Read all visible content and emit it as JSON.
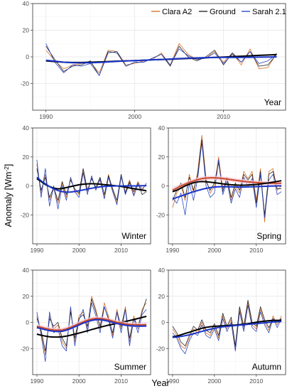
{
  "ylabel_main": "Anomaly [Wm",
  "ylabel_sup": "-2",
  "ylabel_close": "]",
  "xlabel": "Year",
  "legend": [
    {
      "label": "Clara A2",
      "color": "#d2691e"
    },
    {
      "label": "Ground",
      "color": "#1a1a1a"
    },
    {
      "label": "Sarah 2.1",
      "color": "#1f3fbf"
    }
  ],
  "chart_data": [
    {
      "type": "line",
      "panel": "Year",
      "x": [
        1990,
        1991,
        1992,
        1993,
        1994,
        1995,
        1996,
        1997,
        1998,
        1999,
        2000,
        2001,
        2002,
        2003,
        2004,
        2005,
        2006,
        2007,
        2008,
        2009,
        2010,
        2011,
        2012,
        2013,
        2014,
        2015,
        2016
      ],
      "xlim": [
        1988.5,
        2017
      ],
      "ylim": [
        -40,
        40
      ],
      "xticks": [
        1990,
        2000,
        2010
      ],
      "yticks": [
        -20,
        0,
        20,
        40
      ],
      "series": [
        {
          "name": "Clara A2",
          "values": [
            5,
            -3,
            -9,
            -6,
            -5,
            -4,
            -12,
            5,
            4,
            -6,
            -5,
            -3,
            -2,
            3,
            -6,
            10,
            2,
            -2,
            -1,
            4,
            -4,
            3,
            -6,
            6,
            -9,
            -8,
            3
          ]
        },
        {
          "name": "Ground",
          "values": [
            8,
            -2,
            -11,
            -7,
            -6,
            -3,
            -14,
            4,
            3,
            -7,
            -4,
            -4,
            -1,
            2,
            -7,
            8,
            0,
            -3,
            0,
            5,
            -6,
            3,
            -4,
            4,
            -7,
            -6,
            2
          ]
        },
        {
          "name": "Sarah 2.1",
          "values": [
            10,
            -4,
            -12,
            -6,
            -7,
            -5,
            -14,
            3,
            4,
            -7,
            -4,
            -4,
            -1,
            2,
            -6,
            6,
            1,
            -2,
            -1,
            3,
            -5,
            2,
            -4,
            4,
            -5,
            -3,
            2
          ]
        },
        {
          "name": "Ground trend",
          "values": [
            -3,
            -3.5,
            -4,
            -4.2,
            -4.2,
            -4,
            -3.8,
            -3.5,
            -3.2,
            -3,
            -2.8,
            -2.5,
            -2.2,
            -2,
            -1.8,
            -1.5,
            -1.2,
            -1,
            -0.7,
            -0.4,
            -0.1,
            0.2,
            0.5,
            0.8,
            1.1,
            1.4,
            1.7
          ]
        },
        {
          "name": "Sarah 2.1 trend",
          "values": [
            -2.5,
            -3.2,
            -4,
            -4.4,
            -4.5,
            -4.4,
            -4.2,
            -3.8,
            -3.4,
            -3.1,
            -2.8,
            -2.5,
            -2.2,
            -1.9,
            -1.6,
            -1.3,
            -1,
            -0.8,
            -0.6,
            -0.5,
            -0.4,
            -0.4,
            -0.4,
            -0.3,
            -0.2,
            -0.1,
            0
          ]
        }
      ]
    },
    {
      "type": "line",
      "panel": "Winter",
      "x": [
        1990,
        1991,
        1992,
        1993,
        1994,
        1995,
        1996,
        1997,
        1998,
        1999,
        2000,
        2001,
        2002,
        2003,
        2004,
        2005,
        2006,
        2007,
        2008,
        2009,
        2010,
        2011,
        2012,
        2013,
        2014,
        2015,
        2016
      ],
      "xlim": [
        1989,
        2017
      ],
      "ylim": [
        -40,
        40
      ],
      "xticks": [
        1990,
        2000,
        2010
      ],
      "yticks": [
        -20,
        0,
        20,
        40
      ],
      "series": [
        {
          "name": "Clara A2",
          "values": [
            15,
            -5,
            8,
            -10,
            -2,
            -12,
            2,
            -8,
            5,
            -3,
            -6,
            10,
            -4,
            6,
            -2,
            4,
            -8,
            8,
            -3,
            -12,
            6,
            -4,
            4,
            -6,
            3,
            -2,
            1
          ]
        },
        {
          "name": "Ground",
          "values": [
            12,
            -3,
            6,
            -8,
            -1,
            -10,
            3,
            -6,
            4,
            -2,
            -5,
            12,
            -3,
            5,
            -1,
            6,
            -6,
            7,
            -2,
            -10,
            8,
            -5,
            3,
            -4,
            2,
            -6,
            -4
          ]
        },
        {
          "name": "Sarah 2.1",
          "values": [
            18,
            -8,
            12,
            -14,
            0,
            -16,
            0,
            -10,
            6,
            -4,
            -8,
            9,
            -6,
            7,
            -3,
            5,
            -9,
            6,
            -4,
            -13,
            7,
            -6,
            2,
            -7,
            1,
            -3,
            2
          ]
        },
        {
          "name": "Ground trend",
          "values": [
            5,
            3,
            1,
            -0.5,
            -1.5,
            -2,
            -1.8,
            -1.2,
            -0.5,
            0.2,
            0.8,
            1.2,
            1.4,
            1.5,
            1.4,
            1.2,
            0.9,
            0.6,
            0.3,
            0,
            -0.4,
            -0.9,
            -1.4,
            -1.9,
            -2.4,
            -2.9,
            -3.3
          ]
        },
        {
          "name": "Sarah 2.1 trend",
          "values": [
            6,
            3.5,
            1.5,
            -0.5,
            -2,
            -3.2,
            -4,
            -4.3,
            -4.2,
            -3.9,
            -3.4,
            -2.8,
            -2.2,
            -1.6,
            -1.1,
            -0.7,
            -0.4,
            -0.2,
            -0.1,
            0,
            0,
            0,
            0,
            0,
            0,
            0.1,
            0.2
          ]
        }
      ]
    },
    {
      "type": "line",
      "panel": "Spring",
      "x": [
        1990,
        1991,
        1992,
        1993,
        1994,
        1995,
        1996,
        1997,
        1998,
        1999,
        2000,
        2001,
        2002,
        2003,
        2004,
        2005,
        2006,
        2007,
        2008,
        2009,
        2010,
        2011,
        2012,
        2013,
        2014,
        2015,
        2016
      ],
      "xlim": [
        1989,
        2017
      ],
      "ylim": [
        -40,
        40
      ],
      "xticks": [
        1990,
        2000,
        2010
      ],
      "yticks": [
        -20,
        0,
        20,
        40
      ],
      "series": [
        {
          "name": "Clara A2",
          "values": [
            -15,
            -5,
            0,
            -10,
            8,
            -5,
            10,
            35,
            5,
            -5,
            0,
            20,
            -2,
            5,
            -10,
            0,
            -5,
            10,
            5,
            10,
            -10,
            12,
            -25,
            10,
            12,
            -3,
            0
          ]
        },
        {
          "name": "Ground",
          "values": [
            -10,
            -3,
            2,
            -8,
            6,
            -3,
            8,
            32,
            3,
            -3,
            2,
            16,
            -4,
            6,
            -8,
            2,
            -3,
            8,
            4,
            8,
            -12,
            10,
            -20,
            8,
            10,
            -2,
            -2
          ]
        },
        {
          "name": "Sarah 2.1",
          "values": [
            -8,
            -12,
            -5,
            -20,
            2,
            -10,
            5,
            30,
            0,
            -8,
            -5,
            18,
            -6,
            3,
            -12,
            -2,
            -8,
            6,
            0,
            5,
            -15,
            8,
            -22,
            4,
            8,
            -6,
            -4
          ]
        },
        {
          "name": "Clara A2 trend",
          "values": [
            -3,
            -1.5,
            0,
            1.2,
            2.4,
            3.4,
            4.3,
            5,
            5.4,
            5.6,
            5.6,
            5.4,
            5.1,
            4.7,
            4.3,
            3.9,
            3.5,
            3.1,
            2.8,
            2.5,
            2.3,
            2.1,
            2,
            1.9,
            1.8,
            1.8,
            1.8
          ]
        },
        {
          "name": "Ground trend",
          "values": [
            -4,
            -3,
            -1.5,
            0,
            1.2,
            2.2,
            2.8,
            3,
            2.9,
            2.6,
            2.2,
            1.8,
            1.4,
            1.1,
            0.8,
            0.6,
            0.5,
            0.5,
            0.6,
            0.8,
            1,
            1.3,
            1.7,
            2.1,
            2.6,
            3.1,
            3.6
          ]
        },
        {
          "name": "Sarah 2.1 trend",
          "values": [
            -9,
            -8,
            -7,
            -6,
            -5,
            -4,
            -3.2,
            -2.4,
            -1.7,
            -1.2,
            -0.8,
            -0.6,
            -0.5,
            -0.6,
            -0.7,
            -0.8,
            -0.8,
            -0.8,
            -0.7,
            -0.6,
            -0.5,
            -0.4,
            -0.3,
            -0.2,
            -0.1,
            0,
            0
          ]
        }
      ]
    },
    {
      "type": "line",
      "panel": "Summer",
      "x": [
        1990,
        1991,
        1992,
        1993,
        1994,
        1995,
        1996,
        1997,
        1998,
        1999,
        2000,
        2001,
        2002,
        2003,
        2004,
        2005,
        2006,
        2007,
        2008,
        2009,
        2010,
        2011,
        2012,
        2013,
        2014,
        2015,
        2016
      ],
      "xlim": [
        1989,
        2017
      ],
      "ylim": [
        -40,
        40
      ],
      "xticks": [
        1990,
        2000,
        2010
      ],
      "yticks": [
        -20,
        0,
        20,
        40
      ],
      "series": [
        {
          "name": "Clara A2",
          "values": [
            5,
            -8,
            -25,
            5,
            -5,
            -2,
            -15,
            -20,
            10,
            -15,
            5,
            8,
            -5,
            20,
            10,
            -5,
            15,
            5,
            -10,
            10,
            -5,
            12,
            -15,
            5,
            -5,
            10,
            15
          ]
        },
        {
          "name": "Ground",
          "values": [
            3,
            -6,
            -22,
            3,
            -3,
            0,
            -12,
            -18,
            8,
            -12,
            3,
            6,
            -3,
            18,
            8,
            -3,
            12,
            3,
            -8,
            8,
            -3,
            10,
            -12,
            3,
            -3,
            8,
            18
          ]
        },
        {
          "name": "Sarah 2.1",
          "values": [
            8,
            -10,
            -30,
            8,
            -8,
            -5,
            -18,
            -22,
            12,
            -18,
            2,
            10,
            -8,
            15,
            5,
            -8,
            12,
            2,
            -12,
            8,
            -8,
            10,
            -18,
            3,
            -8,
            6,
            10
          ]
        },
        {
          "name": "Ground trend",
          "values": [
            -9,
            -9.8,
            -10.5,
            -11,
            -11.2,
            -11.2,
            -11,
            -10.5,
            -9.8,
            -9,
            -8.2,
            -7.3,
            -6.4,
            -5.5,
            -4.6,
            -3.7,
            -2.9,
            -2.1,
            -1.4,
            -0.7,
            0,
            0.7,
            1.4,
            2.2,
            3,
            3.8,
            4.6
          ]
        },
        {
          "name": "Clara A2 trend",
          "values": [
            -3,
            -3.8,
            -4.6,
            -5.3,
            -5.8,
            -6,
            -5.8,
            -5,
            -3.8,
            -2.4,
            -1,
            0.4,
            1.6,
            2.5,
            3,
            3,
            2.6,
            1.9,
            1,
            0.1,
            -0.6,
            -1.2,
            -1.6,
            -1.8,
            -1.9,
            -1.9,
            -1.8
          ]
        },
        {
          "name": "Sarah 2.1 trend",
          "values": [
            -4,
            -4.8,
            -5.6,
            -6.3,
            -6.8,
            -7,
            -6.8,
            -6,
            -4.8,
            -3.4,
            -2,
            -0.6,
            0.6,
            1.5,
            2,
            2,
            1.6,
            0.9,
            0,
            -0.9,
            -1.6,
            -2.2,
            -2.6,
            -2.8,
            -2.9,
            -2.9,
            -2.8
          ]
        }
      ]
    },
    {
      "type": "line",
      "panel": "Autumn",
      "x": [
        1990,
        1991,
        1992,
        1993,
        1994,
        1995,
        1996,
        1997,
        1998,
        1999,
        2000,
        2001,
        2002,
        2003,
        2004,
        2005,
        2006,
        2007,
        2008,
        2009,
        2010,
        2011,
        2012,
        2013,
        2014,
        2015,
        2016
      ],
      "xlim": [
        1989,
        2017
      ],
      "ylim": [
        -40,
        40
      ],
      "xticks": [
        1990,
        2000,
        2010
      ],
      "yticks": [
        -20,
        0,
        20,
        40
      ],
      "series": [
        {
          "name": "Clara A2",
          "values": [
            -5,
            -10,
            -18,
            -20,
            -12,
            -5,
            -8,
            0,
            -8,
            -10,
            -3,
            -12,
            5,
            -5,
            2,
            -20,
            10,
            -5,
            15,
            -2,
            -5,
            10,
            0,
            -6,
            5,
            -2,
            5
          ]
        },
        {
          "name": "Ground",
          "values": [
            -3,
            -8,
            -15,
            -18,
            -10,
            -3,
            -6,
            2,
            -6,
            -8,
            -1,
            -10,
            7,
            -3,
            4,
            -18,
            12,
            -3,
            17,
            0,
            -3,
            12,
            2,
            -4,
            3,
            0,
            3
          ]
        },
        {
          "name": "Sarah 2.1",
          "values": [
            -8,
            -12,
            -20,
            -24,
            -14,
            -8,
            -10,
            -2,
            -10,
            -12,
            -5,
            -14,
            3,
            -7,
            0,
            -22,
            8,
            -7,
            13,
            -4,
            -7,
            8,
            -2,
            -8,
            3,
            -4,
            3
          ]
        },
        {
          "name": "Ground trend",
          "values": [
            -11,
            -10.5,
            -9.5,
            -8.5,
            -7.5,
            -6.5,
            -5.5,
            -4.5,
            -3.8,
            -3.3,
            -3,
            -2.8,
            -2.6,
            -2.4,
            -2.2,
            -2,
            -1.7,
            -1.3,
            -0.9,
            -0.4,
            0.1,
            0.6,
            1,
            1.3,
            1.5,
            1.6,
            1.6
          ]
        },
        {
          "name": "Sarah 2.1 trend",
          "values": [
            -11.5,
            -11.2,
            -10.8,
            -10.2,
            -9.5,
            -8.7,
            -7.8,
            -6.9,
            -6,
            -5.2,
            -4.5,
            -3.9,
            -3.4,
            -3,
            -2.7,
            -2.4,
            -2.1,
            -1.8,
            -1.5,
            -1.2,
            -0.9,
            -0.6,
            -0.3,
            0,
            0.3,
            0.5,
            0.7
          ]
        }
      ]
    }
  ]
}
